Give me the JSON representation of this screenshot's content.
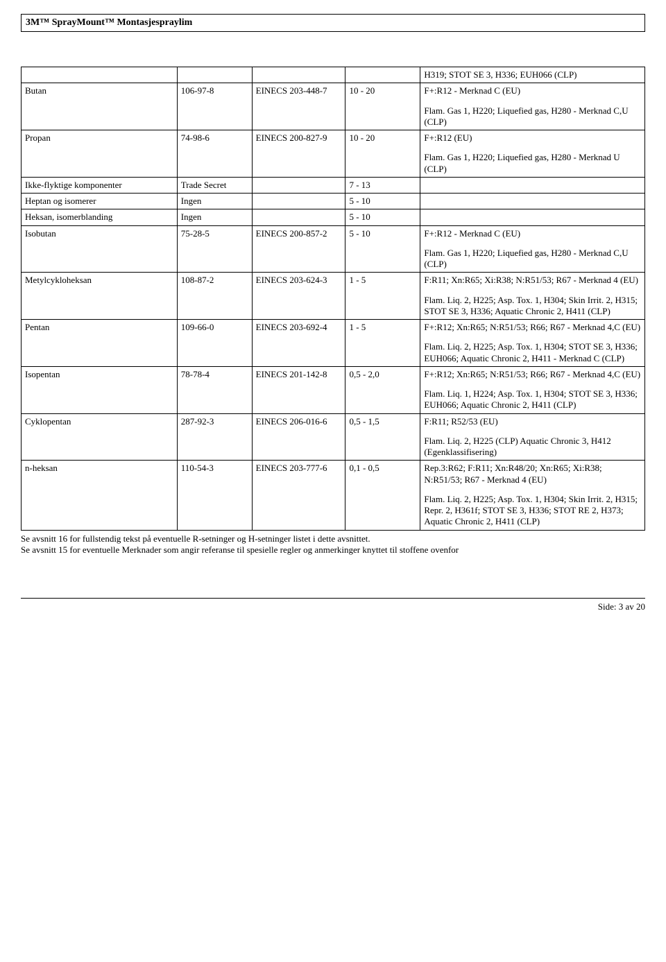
{
  "header": {
    "title": "3M™ SprayMount™ Montasjespraylim"
  },
  "table": {
    "rows": [
      {
        "name": "",
        "cas": "",
        "ec": "",
        "pct": "",
        "paras": [
          "H319; STOT SE 3, H336; EUH066 (CLP)"
        ]
      },
      {
        "name": "Butan",
        "cas": "106-97-8",
        "ec": "EINECS 203-448-7",
        "pct": "10 -  20",
        "paras": [
          "F+:R12 - Merknad C (EU)",
          "Flam. Gas 1, H220; Liquefied gas, H280 - Merknad C,U (CLP)"
        ]
      },
      {
        "name": "Propan",
        "cas": "74-98-6",
        "ec": "EINECS 200-827-9",
        "pct": "10 -  20",
        "paras": [
          "F+:R12 (EU)",
          "Flam. Gas 1, H220; Liquefied gas, H280 - Merknad U (CLP)"
        ]
      },
      {
        "name": "Ikke-flyktige komponenter",
        "cas": "Trade Secret",
        "ec": "",
        "pct": "7 -  13",
        "paras": []
      },
      {
        "name": "Heptan og isomerer",
        "cas": "Ingen",
        "ec": "",
        "pct": "5 -  10",
        "paras": []
      },
      {
        "name": "Heksan, isomerblanding",
        "cas": "Ingen",
        "ec": "",
        "pct": "5 -  10",
        "paras": []
      },
      {
        "name": "Isobutan",
        "cas": "75-28-5",
        "ec": "EINECS 200-857-2",
        "pct": "5 -  10",
        "paras": [
          "F+:R12 - Merknad C (EU)",
          "Flam. Gas 1, H220; Liquefied gas, H280 - Merknad C,U (CLP)"
        ]
      },
      {
        "name": "Metylcykloheksan",
        "cas": "108-87-2",
        "ec": "EINECS 203-624-3",
        "pct": "1 -  5",
        "paras": [
          "F:R11; Xn:R65; Xi:R38; N:R51/53; R67 - Merknad 4 (EU)",
          "Flam. Liq. 2, H225; Asp. Tox. 1, H304; Skin Irrit. 2, H315; STOT SE 3, H336; Aquatic Chronic 2, H411 (CLP)"
        ]
      },
      {
        "name": "Pentan",
        "cas": "109-66-0",
        "ec": "EINECS 203-692-4",
        "pct": "1 -  5",
        "paras": [
          "F+:R12; Xn:R65; N:R51/53; R66; R67 - Merknad 4,C (EU)",
          "Flam. Liq. 2, H225; Asp. Tox. 1, H304; STOT SE 3, H336; EUH066; Aquatic Chronic 2, H411 - Merknad C (CLP)"
        ]
      },
      {
        "name": "Isopentan",
        "cas": "78-78-4",
        "ec": "EINECS 201-142-8",
        "pct": "0,5 -  2,0",
        "paras": [
          "F+:R12; Xn:R65; N:R51/53; R66; R67 - Merknad 4,C (EU)",
          "Flam. Liq. 1, H224; Asp. Tox. 1, H304; STOT SE 3, H336; EUH066; Aquatic Chronic 2, H411 (CLP)"
        ]
      },
      {
        "name": "Cyklopentan",
        "cas": "287-92-3",
        "ec": "EINECS 206-016-6",
        "pct": "0,5 -  1,5",
        "paras": [
          "F:R11; R52/53 (EU)",
          "Flam. Liq. 2, H225 (CLP) Aquatic Chronic 3, H412 (Egenklassifisering)"
        ]
      },
      {
        "name": "n-heksan",
        "cas": "110-54-3",
        "ec": "EINECS 203-777-6",
        "pct": "0,1 -  0,5",
        "paras": [
          "Rep.3:R62; F:R11; Xn:R48/20; Xn:R65; Xi:R38; N:R51/53; R67 - Merknad 4 (EU)",
          "Flam. Liq. 2, H225; Asp. Tox. 1, H304; Skin Irrit. 2, H315; Repr. 2, H361f; STOT SE 3, H336; STOT RE 2, H373; Aquatic Chronic 2, H411 (CLP)"
        ]
      }
    ]
  },
  "notes": {
    "line1": "Se avsnitt 16 for fullstendig tekst på eventuelle R-setninger og H-setninger listet i dette avsnittet.",
    "line2": "Se avsnitt 15 for eventuelle Merknader som angir referanse til spesielle regler og anmerkinger knyttet til stoffene ovenfor"
  },
  "footer": {
    "page_label": "Side: 3 av  20"
  }
}
